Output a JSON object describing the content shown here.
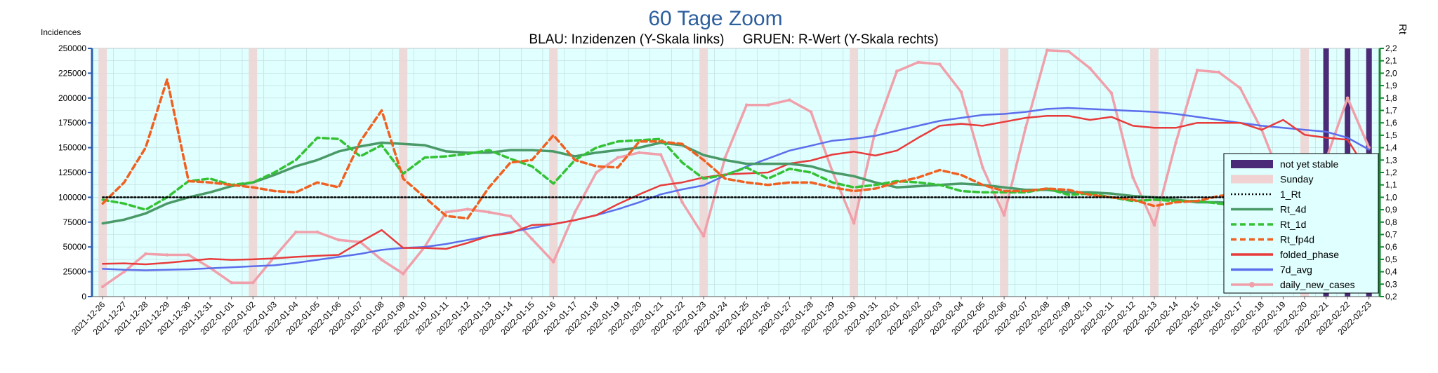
{
  "chart_data": {
    "type": "line",
    "title": "60 Tage Zoom",
    "subtitle": "BLAU: Inzidenzen (Y-Skala links)     GRUEN: R-Wert (Y-Skala rechts)",
    "ylabel": "Incidences",
    "y2label": "Rt",
    "ylim": [
      0,
      250000
    ],
    "y2lim": [
      0.2,
      2.2
    ],
    "yticks": [
      0,
      25000,
      50000,
      75000,
      100000,
      125000,
      150000,
      175000,
      200000,
      225000,
      250000
    ],
    "y2ticks": [
      "0,2",
      "0,3",
      "0,4",
      "0,5",
      "0,6",
      "0,7",
      "0,8",
      "0,9",
      "1,0",
      "1,1",
      "1,2",
      "1,3",
      "1,4",
      "1,5",
      "1,6",
      "1,7",
      "1,8",
      "1,9",
      "2,0",
      "2,1",
      "2,2"
    ],
    "grid": true,
    "legend_position": "right",
    "dates": [
      "2021-12-26",
      "2021-12-27",
      "2021-12-28",
      "2021-12-29",
      "2021-12-30",
      "2021-12-31",
      "2022-01-01",
      "2022-01-02",
      "2022-01-03",
      "2022-01-04",
      "2022-01-05",
      "2022-01-06",
      "2022-01-07",
      "2022-01-08",
      "2022-01-09",
      "2022-01-10",
      "2022-01-11",
      "2022-01-12",
      "2022-01-13",
      "2022-01-14",
      "2022-01-15",
      "2022-01-16",
      "2022-01-17",
      "2022-01-18",
      "2022-01-19",
      "2022-01-20",
      "2022-01-21",
      "2022-01-22",
      "2022-01-23",
      "2022-01-24",
      "2022-01-25",
      "2022-01-26",
      "2022-01-27",
      "2022-01-28",
      "2022-01-29",
      "2022-01-30",
      "2022-01-31",
      "2022-02-01",
      "2022-02-02",
      "2022-02-03",
      "2022-02-04",
      "2022-02-05",
      "2022-02-06",
      "2022-02-07",
      "2022-02-08",
      "2022-02-09",
      "2022-02-10",
      "2022-02-11",
      "2022-02-12",
      "2022-02-13",
      "2022-02-14",
      "2022-02-15",
      "2022-02-16",
      "2022-02-17",
      "2022-02-18",
      "2022-02-19",
      "2022-02-20",
      "2022-02-21",
      "2022-02-22",
      "2022-02-23"
    ],
    "sundays": [
      "2021-12-26",
      "2022-01-02",
      "2022-01-09",
      "2022-01-16",
      "2022-01-23",
      "2022-01-30",
      "2022-02-06",
      "2022-02-13",
      "2022-02-20"
    ],
    "not_yet_stable": [
      "2022-02-21",
      "2022-02-22",
      "2022-02-23"
    ],
    "series": [
      {
        "name": "daily_new_cases",
        "axis": "left",
        "color": "#f0a0aa",
        "values": [
          10000,
          25000,
          43000,
          42000,
          42000,
          29000,
          14000,
          14000,
          40000,
          65000,
          65000,
          57000,
          55000,
          37000,
          23000,
          50000,
          85000,
          88000,
          85000,
          81000,
          58000,
          35000,
          85000,
          125000,
          140000,
          145000,
          143000,
          95000,
          61000,
          140000,
          193000,
          193000,
          198000,
          186000,
          126000,
          74000,
          167000,
          227000,
          236000,
          234000,
          206000,
          130000,
          82000,
          170000,
          248000,
          247000,
          230000,
          205000,
          120000,
          72000,
          155000,
          228000,
          226000,
          210000,
          168000,
          113000,
          65000,
          138000,
          200000,
          150000
        ]
      },
      {
        "name": "7d_avg",
        "axis": "left",
        "color": "#5c6eec",
        "values": [
          28000,
          27000,
          26500,
          27000,
          27500,
          28500,
          29500,
          30500,
          31500,
          34000,
          37000,
          40000,
          43000,
          47000,
          49000,
          50000,
          53000,
          57000,
          61000,
          65000,
          69000,
          73000,
          77000,
          82000,
          88000,
          95000,
          103000,
          108000,
          112000,
          122000,
          131000,
          139000,
          147000,
          152000,
          157000,
          159000,
          162000,
          167000,
          172000,
          177000,
          180000,
          183000,
          184000,
          186000,
          189000,
          190000,
          189000,
          188000,
          187000,
          186000,
          184000,
          181000,
          178000,
          175000,
          172000,
          170000,
          168000,
          166000,
          160000,
          148000
        ]
      },
      {
        "name": "folded_phase",
        "axis": "left",
        "color": "#e83c3c",
        "values": [
          33000,
          33500,
          32500,
          34000,
          36000,
          38000,
          37000,
          37500,
          38500,
          40000,
          41000,
          42000,
          55000,
          67000,
          49000,
          49000,
          48000,
          54000,
          61000,
          64000,
          72000,
          73000,
          77000,
          82000,
          93000,
          103000,
          112000,
          115000,
          120000,
          123000,
          124000,
          125000,
          134000,
          137000,
          143000,
          146000,
          142000,
          147000,
          160000,
          172000,
          174000,
          172000,
          176000,
          180000,
          182000,
          182000,
          178000,
          181000,
          172000,
          170000,
          170000,
          175000,
          175000,
          175000,
          168000,
          178000,
          163000,
          160000,
          158000,
          124000
        ]
      },
      {
        "name": "Rt_4d",
        "axis": "right",
        "color": "#4a9a68",
        "values": [
          0.79,
          0.82,
          0.87,
          0.95,
          1.0,
          1.04,
          1.09,
          1.12,
          1.18,
          1.25,
          1.3,
          1.37,
          1.41,
          1.44,
          1.43,
          1.42,
          1.37,
          1.36,
          1.36,
          1.38,
          1.38,
          1.37,
          1.33,
          1.36,
          1.38,
          1.4,
          1.44,
          1.42,
          1.34,
          1.3,
          1.27,
          1.27,
          1.27,
          1.25,
          1.2,
          1.17,
          1.12,
          1.08,
          1.09,
          1.1,
          1.11,
          1.1,
          1.08,
          1.06,
          1.06,
          1.04,
          1.04,
          1.03,
          1.01,
          1.0,
          0.98,
          0.96,
          0.96,
          0.95,
          0.94,
          0.95,
          0.95,
          0.95,
          0.94,
          0.89
        ]
      },
      {
        "name": "Rt_1d",
        "axis": "right",
        "color": "#34c234",
        "values": [
          0.98,
          0.95,
          0.9,
          1.0,
          1.13,
          1.15,
          1.1,
          1.12,
          1.2,
          1.3,
          1.48,
          1.47,
          1.33,
          1.42,
          1.19,
          1.32,
          1.33,
          1.35,
          1.38,
          1.31,
          1.25,
          1.11,
          1.3,
          1.4,
          1.45,
          1.46,
          1.47,
          1.28,
          1.15,
          1.18,
          1.24,
          1.15,
          1.23,
          1.2,
          1.12,
          1.08,
          1.1,
          1.13,
          1.12,
          1.1,
          1.05,
          1.04,
          1.04,
          1.04,
          1.07,
          1.02,
          1.03,
          1.0,
          0.97,
          0.98,
          0.97,
          0.97,
          0.95,
          0.93,
          0.92,
          0.95,
          0.93,
          0.96,
          0.93,
          0.71
        ]
      },
      {
        "name": "Rt_fp4d",
        "axis": "right",
        "color": "#f06020",
        "values": [
          0.95,
          1.12,
          1.4,
          1.95,
          1.13,
          1.12,
          1.1,
          1.08,
          1.05,
          1.04,
          1.12,
          1.08,
          1.45,
          1.7,
          1.15,
          1.0,
          0.85,
          0.83,
          1.08,
          1.28,
          1.3,
          1.5,
          1.3,
          1.25,
          1.24,
          1.45,
          1.45,
          1.43,
          1.3,
          1.15,
          1.12,
          1.1,
          1.12,
          1.12,
          1.08,
          1.05,
          1.07,
          1.12,
          1.16,
          1.22,
          1.18,
          1.1,
          1.05,
          1.05,
          1.07,
          1.06,
          1.02,
          1.0,
          0.98,
          0.93,
          0.96,
          0.97,
          1.01,
          1.03,
          0.98,
          1.0,
          0.98,
          0.9,
          0.91,
          0.73
        ]
      },
      {
        "name": "1_Rt",
        "axis": "right",
        "color": "#000000",
        "values": [
          1.0,
          1.0,
          1.0,
          1.0,
          1.0,
          1.0,
          1.0,
          1.0,
          1.0,
          1.0,
          1.0,
          1.0,
          1.0,
          1.0,
          1.0,
          1.0,
          1.0,
          1.0,
          1.0,
          1.0,
          1.0,
          1.0,
          1.0,
          1.0,
          1.0,
          1.0,
          1.0,
          1.0,
          1.0,
          1.0,
          1.0,
          1.0,
          1.0,
          1.0,
          1.0,
          1.0,
          1.0,
          1.0,
          1.0,
          1.0,
          1.0,
          1.0,
          1.0,
          1.0,
          1.0,
          1.0,
          1.0,
          1.0,
          1.0,
          1.0,
          1.0,
          1.0,
          1.0,
          1.0,
          1.0,
          1.0,
          1.0,
          1.0,
          1.0,
          1.0
        ]
      }
    ],
    "legend": [
      {
        "label": "not yet stable",
        "kind": "bar",
        "color": "#4b2a78"
      },
      {
        "label": "Sunday",
        "kind": "bar",
        "color": "#f0d2d2"
      },
      {
        "label": "1_Rt",
        "kind": "dotted",
        "color": "#000000"
      },
      {
        "label": "Rt_4d",
        "kind": "solid",
        "color": "#4a9a68"
      },
      {
        "label": "Rt_1d",
        "kind": "dashed",
        "color": "#34c234"
      },
      {
        "label": "Rt_fp4d",
        "kind": "dashed",
        "color": "#f06020"
      },
      {
        "label": "folded_phase",
        "kind": "solid",
        "color": "#e83c3c"
      },
      {
        "label": "7d_avg",
        "kind": "solid",
        "color": "#5c6eec"
      },
      {
        "label": "daily_new_cases",
        "kind": "marker",
        "color": "#f0a0aa"
      }
    ]
  }
}
